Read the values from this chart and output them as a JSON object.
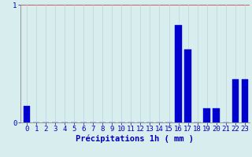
{
  "hours": [
    0,
    1,
    2,
    3,
    4,
    5,
    6,
    7,
    8,
    9,
    10,
    11,
    12,
    13,
    14,
    15,
    16,
    17,
    18,
    19,
    20,
    21,
    22,
    23
  ],
  "values": [
    0.14,
    0.0,
    0.0,
    0.0,
    0.0,
    0.0,
    0.0,
    0.0,
    0.0,
    0.0,
    0.0,
    0.0,
    0.0,
    0.0,
    0.0,
    0.0,
    0.83,
    0.62,
    0.0,
    0.12,
    0.12,
    0.0,
    0.37,
    0.37
  ],
  "bar_color": "#0000cc",
  "bar_edge_color": "#0000ee",
  "background_color": "#d8eeee",
  "grid_color_x": "#b8d8d8",
  "grid_color_y": "#cc4444",
  "axis_color": "#888888",
  "text_color": "#0000bb",
  "xlabel": "Précipitations 1h ( mm )",
  "ylim": [
    0,
    1.0
  ],
  "yticks": [
    0,
    1
  ],
  "tick_fontsize": 6.5,
  "label_fontsize": 7.5
}
